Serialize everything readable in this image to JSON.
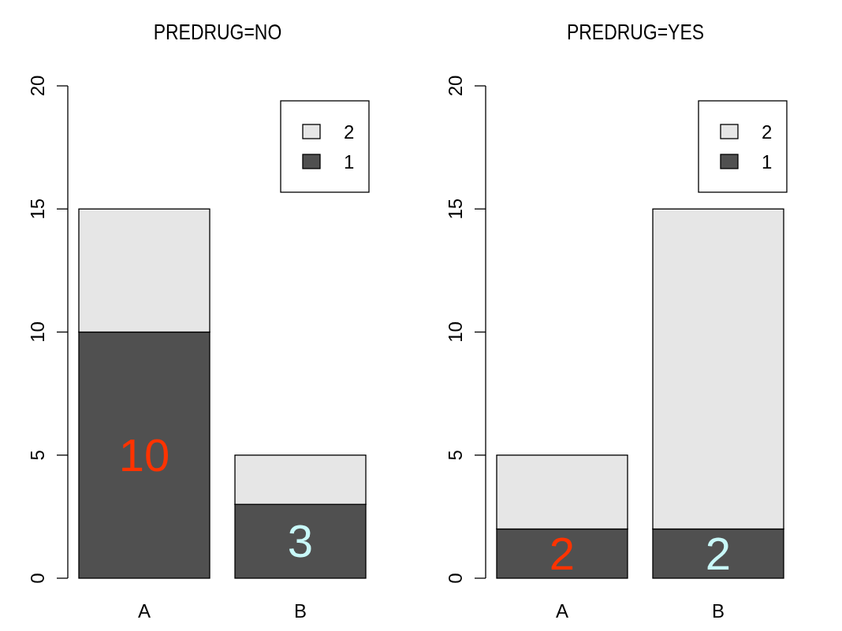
{
  "chart_data": [
    {
      "type": "bar",
      "title": "PREDRUG=NO",
      "categories": [
        "A",
        "B"
      ],
      "stacked": true,
      "ylim": [
        0,
        20
      ],
      "yticks": [
        0,
        5,
        10,
        15,
        20
      ],
      "legend": "top right",
      "grid": false,
      "series": [
        {
          "name": "1",
          "color": "#505050",
          "values": [
            10,
            3
          ],
          "value_labels": [
            "10",
            "3"
          ]
        },
        {
          "name": "2",
          "color": "#e6e6e6",
          "values": [
            5,
            2
          ]
        }
      ]
    },
    {
      "type": "bar",
      "title": "PREDRUG=YES",
      "categories": [
        "A",
        "B"
      ],
      "stacked": true,
      "ylim": [
        0,
        20
      ],
      "yticks": [
        0,
        5,
        10,
        15,
        20
      ],
      "legend": "top right",
      "grid": false,
      "series": [
        {
          "name": "1",
          "color": "#505050",
          "values": [
            2,
            2
          ],
          "value_labels": [
            "2",
            "2"
          ]
        },
        {
          "name": "2",
          "color": "#e6e6e6",
          "values": [
            3,
            13
          ]
        }
      ]
    }
  ]
}
